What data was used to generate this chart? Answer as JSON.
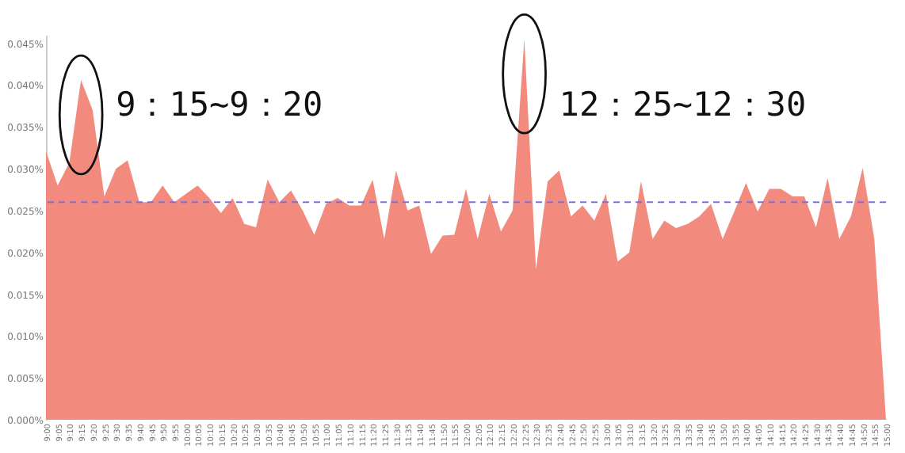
{
  "chart_data": {
    "type": "area",
    "categories": [
      "9:00",
      "9:05",
      "9:10",
      "9:15",
      "9:20",
      "9:25",
      "9:30",
      "9:35",
      "9:40",
      "9:45",
      "9:50",
      "9:55",
      "10:00",
      "10:05",
      "10:10",
      "10:15",
      "10:20",
      "10:25",
      "10:30",
      "10:35",
      "10:40",
      "10:45",
      "10:50",
      "10:55",
      "11:00",
      "11:05",
      "11:10",
      "11:15",
      "11:20",
      "11:25",
      "11:30",
      "11:35",
      "11:40",
      "11:45",
      "11:50",
      "11:55",
      "12:00",
      "12:05",
      "12:10",
      "12:15",
      "12:20",
      "12:25",
      "12:30",
      "12:35",
      "12:40",
      "12:45",
      "12:50",
      "12:55",
      "13:00",
      "13:05",
      "13:10",
      "13:15",
      "13:20",
      "13:25",
      "13:30",
      "13:35",
      "13:40",
      "13:45",
      "13:50",
      "13:55",
      "14:00",
      "14:05",
      "14:10",
      "14:15",
      "14:20",
      "14:25",
      "14:30",
      "14:35",
      "14:40",
      "14:45",
      "14:50",
      "14:55",
      "15:00"
    ],
    "series": [
      {
        "color": "#f28b7d",
        "values": [
          0.0321,
          0.028,
          0.0307,
          0.0406,
          0.037,
          0.0267,
          0.03,
          0.031,
          0.026,
          0.026,
          0.028,
          0.026,
          0.027,
          0.028,
          0.0265,
          0.0247,
          0.0265,
          0.0234,
          0.023,
          0.0287,
          0.026,
          0.0274,
          0.025,
          0.0221,
          0.0258,
          0.0265,
          0.0256,
          0.0256,
          0.0287,
          0.0216,
          0.0298,
          0.025,
          0.0256,
          0.0198,
          0.022,
          0.0221,
          0.0276,
          0.0216,
          0.027,
          0.0225,
          0.025,
          0.0455,
          0.018,
          0.0285,
          0.0298,
          0.0243,
          0.0256,
          0.0238,
          0.027,
          0.0189,
          0.02,
          0.0285,
          0.0216,
          0.0238,
          0.0229,
          0.0234,
          0.0243,
          0.0258,
          0.0216,
          0.0249,
          0.0283,
          0.0249,
          0.0276,
          0.0276,
          0.0267,
          0.0267,
          0.023,
          0.0289,
          0.0216,
          0.0243,
          0.0301,
          0.0216,
          0
        ]
      }
    ],
    "ylim": [
      0,
      0.046
    ],
    "yticks": [
      {
        "value": 0,
        "label": "0.000%"
      },
      {
        "value": 0.005,
        "label": "0.005%"
      },
      {
        "value": 0.01,
        "label": "0.010%"
      },
      {
        "value": 0.015,
        "label": "0.015%"
      },
      {
        "value": 0.02,
        "label": "0.020%"
      },
      {
        "value": 0.025,
        "label": "0.025%"
      },
      {
        "value": 0.03,
        "label": "0.030%"
      },
      {
        "value": 0.035,
        "label": "0.035%"
      },
      {
        "value": 0.04,
        "label": "0.040%"
      },
      {
        "value": 0.045,
        "label": "0.045%"
      }
    ],
    "ref_lines": [
      {
        "axis": "y",
        "value": 0.026,
        "color": "#7b6fe0",
        "line_style": "dashed"
      }
    ],
    "annotations": [
      {
        "text": "9：15~9：20",
        "x": "9:15",
        "y": 0.0406
      },
      {
        "text": "12：25~12：30",
        "x": "12:25",
        "y": 0.0455
      }
    ],
    "grid": false
  }
}
